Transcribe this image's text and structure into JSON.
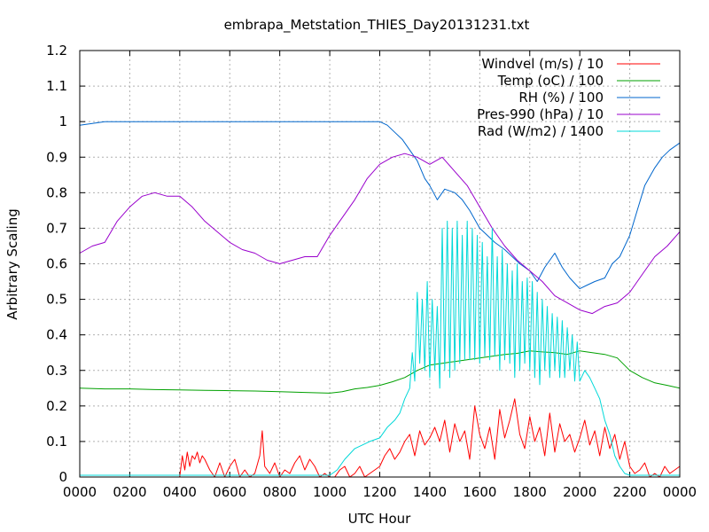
{
  "chart_data": {
    "type": "line",
    "title": "embrapa_Metstation_THIES_Day20131231.txt",
    "xlabel": "UTC Hour",
    "ylabel": "Arbitrary Scaling",
    "xlim": [
      0,
      24
    ],
    "ylim": [
      0,
      1.2
    ],
    "grid": true,
    "legend_position": "top-right",
    "xticks": [
      0,
      2,
      4,
      6,
      8,
      10,
      12,
      14,
      16,
      18,
      20,
      22,
      24
    ],
    "xtick_labels": [
      "0000",
      "0200",
      "0400",
      "0600",
      "0800",
      "1000",
      "1200",
      "1400",
      "1600",
      "1800",
      "2000",
      "2200",
      "0000"
    ],
    "yticks": [
      0,
      0.1,
      0.2,
      0.3,
      0.4,
      0.5,
      0.6,
      0.7,
      0.8,
      0.9,
      1,
      1.1,
      1.2
    ],
    "ytick_labels": [
      "0",
      "0.1",
      "0.2",
      "0.3",
      "0.4",
      "0.5",
      "0.6",
      "0.7",
      "0.8",
      "0.9",
      "1",
      "1.1",
      "1.2"
    ],
    "series": [
      {
        "name": "Windvel (m/s) / 10",
        "color": "#ff0000",
        "x": [
          0,
          4.0,
          4.1,
          4.2,
          4.3,
          4.4,
          4.5,
          4.6,
          4.7,
          4.8,
          4.9,
          5.0,
          5.2,
          5.4,
          5.6,
          5.8,
          6.0,
          6.2,
          6.4,
          6.6,
          6.8,
          7.0,
          7.2,
          7.3,
          7.4,
          7.6,
          7.8,
          8.0,
          8.2,
          8.4,
          8.6,
          8.8,
          9.0,
          9.2,
          9.4,
          9.6,
          9.8,
          10.0,
          10.2,
          10.4,
          10.6,
          10.8,
          11.0,
          11.2,
          11.4,
          11.6,
          11.8,
          12.0,
          12.2,
          12.4,
          12.6,
          12.8,
          13.0,
          13.2,
          13.4,
          13.6,
          13.8,
          14.0,
          14.2,
          14.4,
          14.6,
          14.8,
          15.0,
          15.2,
          15.4,
          15.6,
          15.8,
          16.0,
          16.2,
          16.4,
          16.6,
          16.8,
          17.0,
          17.2,
          17.4,
          17.6,
          17.8,
          18.0,
          18.2,
          18.4,
          18.6,
          18.8,
          19.0,
          19.2,
          19.4,
          19.6,
          19.8,
          20.0,
          20.2,
          20.4,
          20.6,
          20.8,
          21.0,
          21.2,
          21.4,
          21.6,
          21.8,
          22.0,
          22.2,
          22.4,
          22.6,
          22.8,
          23.0,
          23.2,
          23.4,
          23.6,
          23.8,
          24.0
        ],
        "y": [
          0,
          0,
          0.06,
          0.02,
          0.07,
          0.03,
          0.06,
          0.05,
          0.07,
          0.04,
          0.06,
          0.05,
          0.02,
          0.0,
          0.04,
          0.0,
          0.03,
          0.05,
          0.0,
          0.02,
          0.0,
          0.01,
          0.06,
          0.13,
          0.03,
          0.01,
          0.04,
          0.0,
          0.02,
          0.01,
          0.04,
          0.06,
          0.02,
          0.05,
          0.03,
          0.0,
          0.01,
          0.0,
          0.0,
          0.02,
          0.03,
          0.0,
          0.01,
          0.03,
          0.0,
          0.01,
          0.02,
          0.03,
          0.06,
          0.08,
          0.05,
          0.07,
          0.1,
          0.12,
          0.06,
          0.13,
          0.09,
          0.11,
          0.14,
          0.1,
          0.16,
          0.07,
          0.15,
          0.1,
          0.13,
          0.05,
          0.2,
          0.12,
          0.08,
          0.14,
          0.05,
          0.19,
          0.11,
          0.16,
          0.22,
          0.12,
          0.08,
          0.17,
          0.1,
          0.14,
          0.06,
          0.18,
          0.07,
          0.15,
          0.1,
          0.12,
          0.07,
          0.11,
          0.16,
          0.09,
          0.13,
          0.06,
          0.14,
          0.08,
          0.12,
          0.05,
          0.1,
          0.03,
          0.01,
          0.02,
          0.04,
          0.0,
          0.01,
          0.0,
          0.03,
          0.01,
          0.02,
          0.03
        ]
      },
      {
        "name": "Temp (oC) / 100",
        "color": "#00a000",
        "x": [
          0,
          1,
          2,
          3,
          4,
          5,
          6,
          7,
          8,
          9,
          10,
          10.5,
          11,
          11.5,
          12,
          12.5,
          13,
          13.5,
          14,
          14.5,
          15,
          15.5,
          16,
          16.5,
          17,
          17.5,
          18,
          18.5,
          19,
          19.5,
          20,
          20.5,
          21,
          21.5,
          22,
          22.5,
          23,
          23.5,
          24
        ],
        "y": [
          0.25,
          0.248,
          0.248,
          0.246,
          0.245,
          0.244,
          0.243,
          0.242,
          0.24,
          0.238,
          0.236,
          0.24,
          0.248,
          0.252,
          0.258,
          0.268,
          0.28,
          0.3,
          0.315,
          0.32,
          0.325,
          0.33,
          0.335,
          0.34,
          0.345,
          0.348,
          0.355,
          0.352,
          0.35,
          0.345,
          0.355,
          0.35,
          0.345,
          0.335,
          0.3,
          0.28,
          0.265,
          0.258,
          0.25
        ]
      },
      {
        "name": "RH (%) / 100",
        "color": "#0066cc",
        "x": [
          0,
          0.5,
          1,
          2,
          4,
          6,
          8,
          10,
          11,
          12,
          12.3,
          12.6,
          12.9,
          13.2,
          13.5,
          13.8,
          14.0,
          14.3,
          14.6,
          15.0,
          15.3,
          15.6,
          16.0,
          16.3,
          16.6,
          17.0,
          17.3,
          17.6,
          18.0,
          18.3,
          18.6,
          19.0,
          19.3,
          19.6,
          20.0,
          20.3,
          20.6,
          21.0,
          21.3,
          21.6,
          22.0,
          22.3,
          22.6,
          23.0,
          23.3,
          23.6,
          24.0
        ],
        "y": [
          0.99,
          0.995,
          1.0,
          1.0,
          1.0,
          1.0,
          1.0,
          1.0,
          1.0,
          1.0,
          0.99,
          0.97,
          0.95,
          0.92,
          0.89,
          0.84,
          0.82,
          0.78,
          0.81,
          0.8,
          0.78,
          0.75,
          0.7,
          0.68,
          0.66,
          0.64,
          0.62,
          0.6,
          0.58,
          0.55,
          0.59,
          0.63,
          0.59,
          0.56,
          0.53,
          0.54,
          0.55,
          0.56,
          0.6,
          0.62,
          0.68,
          0.75,
          0.82,
          0.87,
          0.9,
          0.92,
          0.94
        ]
      },
      {
        "name": "Pres-990 (hPa) / 10",
        "color": "#9900cc",
        "x": [
          0,
          0.5,
          1,
          1.5,
          2,
          2.5,
          3,
          3.5,
          4,
          4.5,
          5,
          5.5,
          6,
          6.5,
          7,
          7.5,
          8,
          8.5,
          9,
          9.5,
          10,
          10.5,
          11,
          11.5,
          12,
          12.5,
          13,
          13.5,
          14,
          14.5,
          15,
          15.5,
          16,
          16.5,
          17,
          17.5,
          18,
          18.5,
          19,
          19.5,
          20,
          20.5,
          21,
          21.5,
          22,
          22.5,
          23,
          23.5,
          24
        ],
        "y": [
          0.63,
          0.65,
          0.66,
          0.72,
          0.76,
          0.79,
          0.8,
          0.79,
          0.79,
          0.76,
          0.72,
          0.69,
          0.66,
          0.64,
          0.63,
          0.61,
          0.6,
          0.61,
          0.62,
          0.62,
          0.68,
          0.73,
          0.78,
          0.84,
          0.88,
          0.9,
          0.91,
          0.9,
          0.88,
          0.9,
          0.86,
          0.82,
          0.76,
          0.7,
          0.65,
          0.61,
          0.58,
          0.55,
          0.51,
          0.49,
          0.47,
          0.46,
          0.48,
          0.49,
          0.52,
          0.57,
          0.62,
          0.65,
          0.69
        ]
      },
      {
        "name": "Rad (W/m2) / 1400",
        "color": "#00d8d8",
        "x": [
          0,
          10.0,
          10.3,
          10.6,
          11.0,
          11.3,
          11.6,
          12.0,
          12.3,
          12.6,
          12.8,
          13.0,
          13.2,
          13.3,
          13.4,
          13.5,
          13.6,
          13.7,
          13.8,
          13.9,
          14.0,
          14.1,
          14.2,
          14.3,
          14.4,
          14.5,
          14.6,
          14.7,
          14.8,
          14.9,
          15.0,
          15.1,
          15.2,
          15.3,
          15.4,
          15.5,
          15.6,
          15.7,
          15.8,
          15.9,
          16.0,
          16.1,
          16.2,
          16.3,
          16.4,
          16.5,
          16.6,
          16.7,
          16.8,
          16.9,
          17.0,
          17.1,
          17.2,
          17.3,
          17.4,
          17.5,
          17.6,
          17.7,
          17.8,
          17.9,
          18.0,
          18.1,
          18.2,
          18.3,
          18.4,
          18.5,
          18.6,
          18.7,
          18.8,
          18.9,
          19.0,
          19.1,
          19.2,
          19.3,
          19.4,
          19.5,
          19.6,
          19.7,
          19.8,
          19.9,
          20.0,
          20.2,
          20.4,
          20.6,
          20.8,
          21.0,
          21.2,
          21.4,
          21.6,
          21.8,
          22.0,
          24.0
        ],
        "y": [
          0.005,
          0.005,
          0.02,
          0.05,
          0.08,
          0.09,
          0.1,
          0.11,
          0.14,
          0.16,
          0.18,
          0.22,
          0.25,
          0.35,
          0.27,
          0.52,
          0.32,
          0.5,
          0.3,
          0.55,
          0.28,
          0.5,
          0.3,
          0.48,
          0.25,
          0.7,
          0.3,
          0.72,
          0.28,
          0.7,
          0.3,
          0.72,
          0.32,
          0.68,
          0.33,
          0.72,
          0.33,
          0.7,
          0.33,
          0.68,
          0.32,
          0.66,
          0.34,
          0.62,
          0.33,
          0.7,
          0.34,
          0.62,
          0.3,
          0.64,
          0.33,
          0.6,
          0.32,
          0.58,
          0.28,
          0.6,
          0.3,
          0.55,
          0.32,
          0.56,
          0.3,
          0.55,
          0.28,
          0.52,
          0.26,
          0.5,
          0.3,
          0.48,
          0.28,
          0.46,
          0.3,
          0.45,
          0.28,
          0.44,
          0.28,
          0.42,
          0.3,
          0.4,
          0.27,
          0.38,
          0.27,
          0.3,
          0.28,
          0.25,
          0.22,
          0.16,
          0.12,
          0.06,
          0.03,
          0.01,
          0.005,
          0.005
        ]
      }
    ]
  }
}
